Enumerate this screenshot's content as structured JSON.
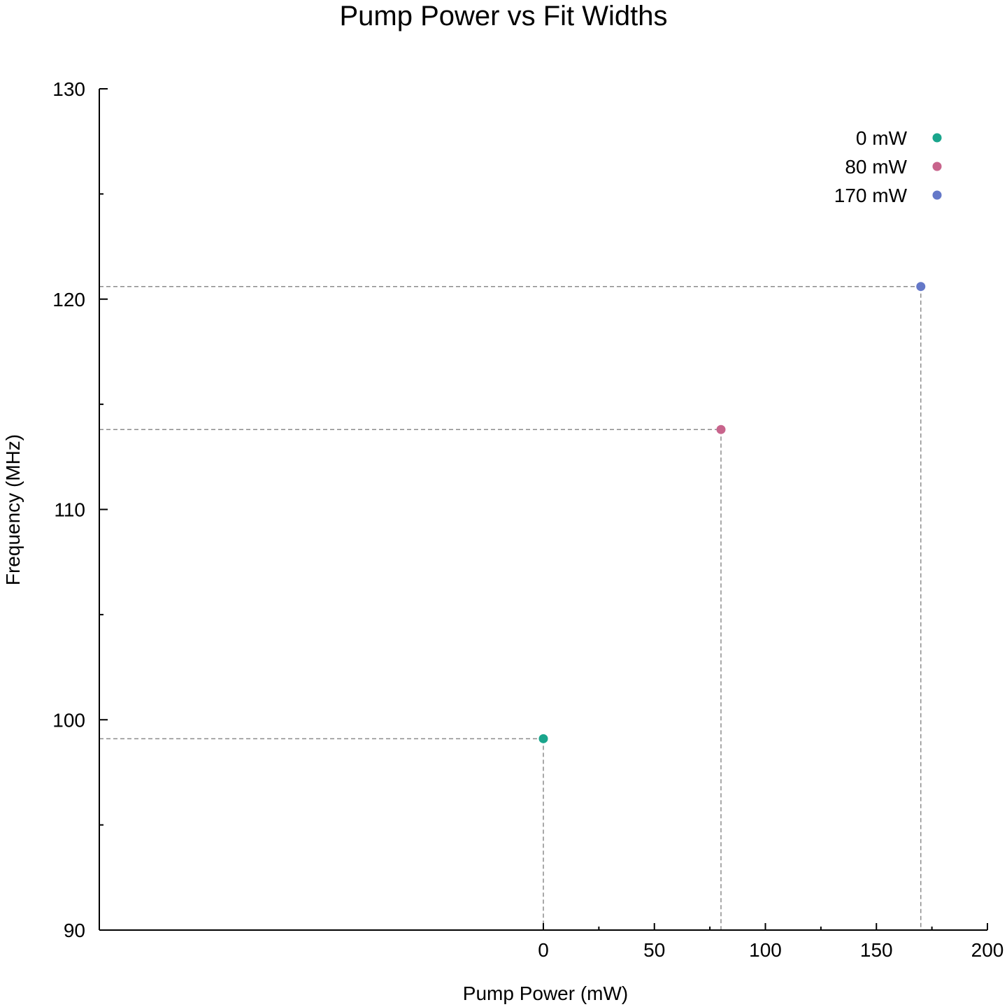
{
  "chart_data": {
    "type": "scatter",
    "title": "Pump Power vs Fit Widths",
    "xlabel": "Pump Power (mW)",
    "ylabel": "Frequency (MHz)",
    "xlim": [
      -200,
      200
    ],
    "ylim": [
      90,
      130
    ],
    "x_ticks": [
      0,
      50,
      100,
      150,
      200
    ],
    "x_tick_labels": [
      "0",
      "50",
      "100",
      "150",
      "200"
    ],
    "x_minor_ticks": [
      25,
      75,
      125,
      175
    ],
    "y_ticks": [
      90,
      100,
      110,
      120,
      130
    ],
    "y_tick_labels": [
      "90",
      "100",
      "110",
      "120",
      "130"
    ],
    "y_minor_ticks": [
      95,
      105,
      115,
      125
    ],
    "grid": false,
    "guide_lines": "dashed drop lines from each point to both axes",
    "legend_position": "top-right",
    "series": [
      {
        "name": "0 mW",
        "color": "#1aa58c",
        "x": [
          0
        ],
        "y": [
          99.1
        ]
      },
      {
        "name": "80 mW",
        "color": "#c8648c",
        "x": [
          80
        ],
        "y": [
          113.8
        ]
      },
      {
        "name": "170 mW",
        "color": "#6478c8",
        "x": [
          170
        ],
        "y": [
          120.6
        ]
      }
    ]
  }
}
